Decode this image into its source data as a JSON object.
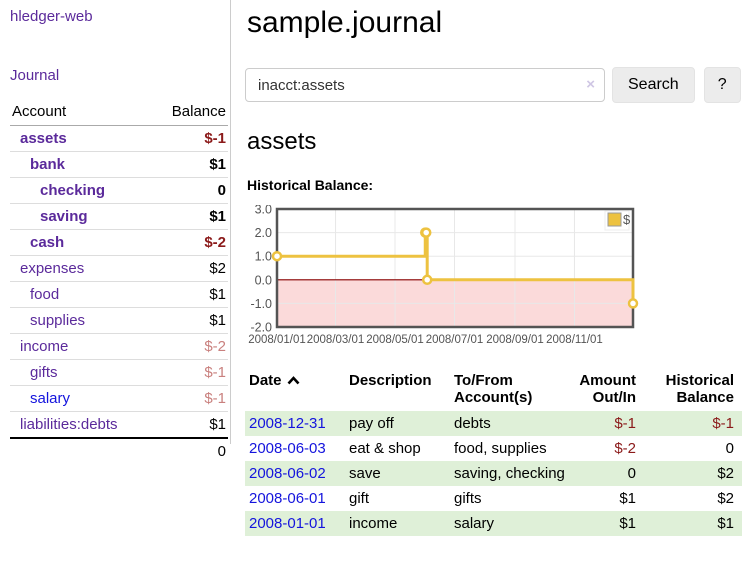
{
  "sidebar": {
    "app_title": "hledger-web",
    "nav": {
      "journal_label": "Journal"
    },
    "accounts_table": {
      "headers": {
        "account": "Account",
        "balance": "Balance"
      },
      "rows": [
        {
          "name": "assets",
          "balance": "$-1",
          "level": 0,
          "match": true,
          "balance_tone": "neg-strong",
          "link_tone": "purple"
        },
        {
          "name": "bank",
          "balance": "$1",
          "level": 1,
          "match": true,
          "balance_tone": "",
          "link_tone": "purple"
        },
        {
          "name": "checking",
          "balance": "0",
          "level": 2,
          "match": true,
          "balance_tone": "",
          "link_tone": "purple"
        },
        {
          "name": "saving",
          "balance": "$1",
          "level": 2,
          "match": true,
          "balance_tone": "",
          "link_tone": "purple"
        },
        {
          "name": "cash",
          "balance": "$-2",
          "level": 1,
          "match": true,
          "balance_tone": "neg-strong",
          "link_tone": "purple"
        },
        {
          "name": "expenses",
          "balance": "$2",
          "level": 0,
          "match": false,
          "balance_tone": "",
          "link_tone": "purple"
        },
        {
          "name": "food",
          "balance": "$1",
          "level": 1,
          "match": false,
          "balance_tone": "",
          "link_tone": "purple"
        },
        {
          "name": "supplies",
          "balance": "$1",
          "level": 1,
          "match": false,
          "balance_tone": "",
          "link_tone": "purple"
        },
        {
          "name": "income",
          "balance": "$-2",
          "level": 0,
          "match": false,
          "balance_tone": "neg-soft",
          "link_tone": "purple"
        },
        {
          "name": "gifts",
          "balance": "$-1",
          "level": 1,
          "match": false,
          "balance_tone": "neg-soft",
          "link_tone": "purple"
        },
        {
          "name": "salary",
          "balance": "$-1",
          "level": 1,
          "match": false,
          "balance_tone": "neg-soft",
          "link_tone": "blue"
        },
        {
          "name": "liabilities:debts",
          "balance": "$1",
          "level": 0,
          "match": false,
          "balance_tone": "",
          "link_tone": "purple"
        }
      ],
      "total": "0"
    }
  },
  "header": {
    "title": "sample.journal"
  },
  "search": {
    "value": "inacct:assets",
    "clear_icon": "×",
    "search_button_label": "Search",
    "help_button_label": "?"
  },
  "account_page": {
    "heading": "assets",
    "chart_label": "Historical Balance:"
  },
  "chart_data": {
    "type": "line",
    "title": "Historical Balance",
    "step": true,
    "series": [
      {
        "name": "$",
        "points": [
          {
            "date": "2008-01-01",
            "value": 1
          },
          {
            "date": "2008-06-01",
            "value": 2
          },
          {
            "date": "2008-06-02",
            "value": 2
          },
          {
            "date": "2008-06-03",
            "value": 0
          },
          {
            "date": "2008-12-31",
            "value": -1
          }
        ]
      }
    ],
    "x_range": [
      "2008-01-01",
      "2008-12-31"
    ],
    "ylim": [
      -2,
      3
    ],
    "y_ticks": [
      3,
      2,
      1,
      0,
      -1,
      -2
    ],
    "y_tick_labels": [
      "3.0",
      "2.0",
      "1.0",
      "0.0",
      "-1.0",
      "-2.0"
    ],
    "x_ticks": [
      "2008-01-01",
      "2008-03-01",
      "2008-05-01",
      "2008-07-01",
      "2008-09-01",
      "2008-11-01"
    ],
    "x_tick_labels": [
      "2008/01/01",
      "2008/03/01",
      "2008/05/01",
      "2008/07/01",
      "2008/09/01",
      "2008/11/01"
    ],
    "grid": true,
    "negative_region_shaded": true,
    "zero_line": true,
    "legend": {
      "position": "top-right",
      "label": "$"
    }
  },
  "register": {
    "headers": {
      "date": "Date",
      "description": "Description",
      "accounts": "To/From Account(s)",
      "amount": "Amount Out/In",
      "balance": "Historical Balance"
    },
    "rows": [
      {
        "date": "2008-12-31",
        "description": "pay off",
        "accounts": "debts",
        "amount": "$-1",
        "amount_neg": true,
        "balance": "$-1",
        "balance_neg": true
      },
      {
        "date": "2008-06-03",
        "description": "eat & shop",
        "accounts": "food, supplies",
        "amount": "$-2",
        "amount_neg": true,
        "balance": "0",
        "balance_neg": false
      },
      {
        "date": "2008-06-02",
        "description": "save",
        "accounts": "saving, checking",
        "amount": "0",
        "amount_neg": false,
        "balance": "$2",
        "balance_neg": false
      },
      {
        "date": "2008-06-01",
        "description": "gift",
        "accounts": "gifts",
        "amount": "$1",
        "amount_neg": false,
        "balance": "$2",
        "balance_neg": false
      },
      {
        "date": "2008-01-01",
        "description": "income",
        "accounts": "salary",
        "amount": "$1",
        "amount_neg": false,
        "balance": "$1",
        "balance_neg": false
      }
    ]
  },
  "colors": {
    "link_purple": "#5b2a9b",
    "link_blue": "#1414dd",
    "neg_strong": "#8b1a1a",
    "neg_soft": "#c9807e",
    "series_yellow": "#edc240",
    "negative_fill": "#fbdada",
    "zero_line": "#8b0000",
    "axis_text": "#545454",
    "grid_line": "#e8e8e8",
    "chart_border": "#545454",
    "row_green": "#dff0d8",
    "button_bg": "#ececec",
    "divider": "#ccc"
  }
}
